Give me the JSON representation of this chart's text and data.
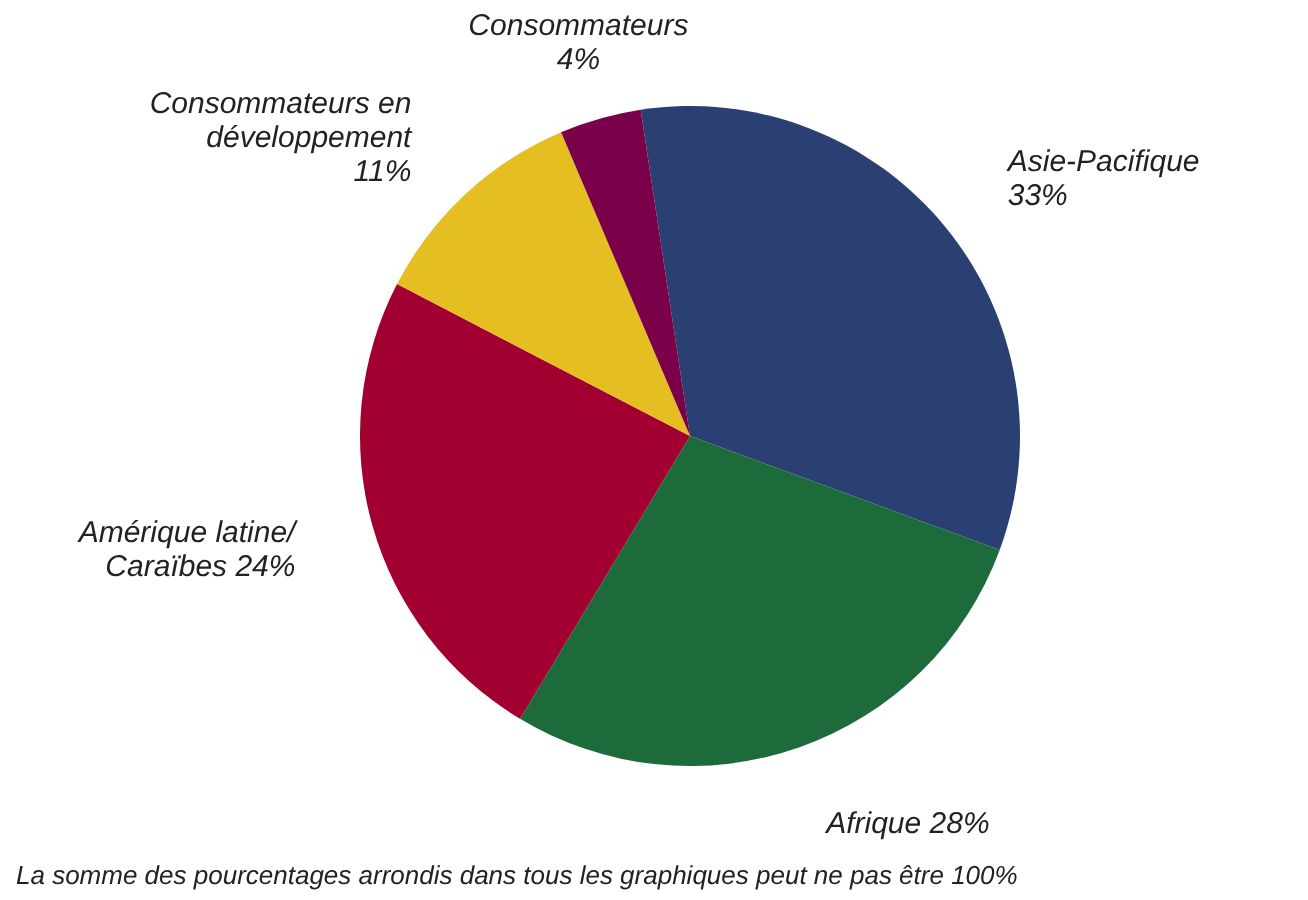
{
  "chart_data": {
    "type": "pie",
    "categories": [
      "Asie-Pacifique",
      "Afrique",
      "Amérique latine/ Caraïbes",
      "Consommateurs en développement",
      "Consommateurs"
    ],
    "values": [
      33,
      28,
      24,
      11,
      4
    ],
    "value_labels": [
      "33%",
      "28%",
      "24%",
      "11%",
      "4%"
    ],
    "colors": [
      "#2b4072",
      "#1d6a3a",
      "#a10030",
      "#e5be22",
      "#7a0049"
    ],
    "annotations": [
      "La somme des pourcentages arrondis dans tous les graphiques peut ne pas être 100%"
    ]
  }
}
